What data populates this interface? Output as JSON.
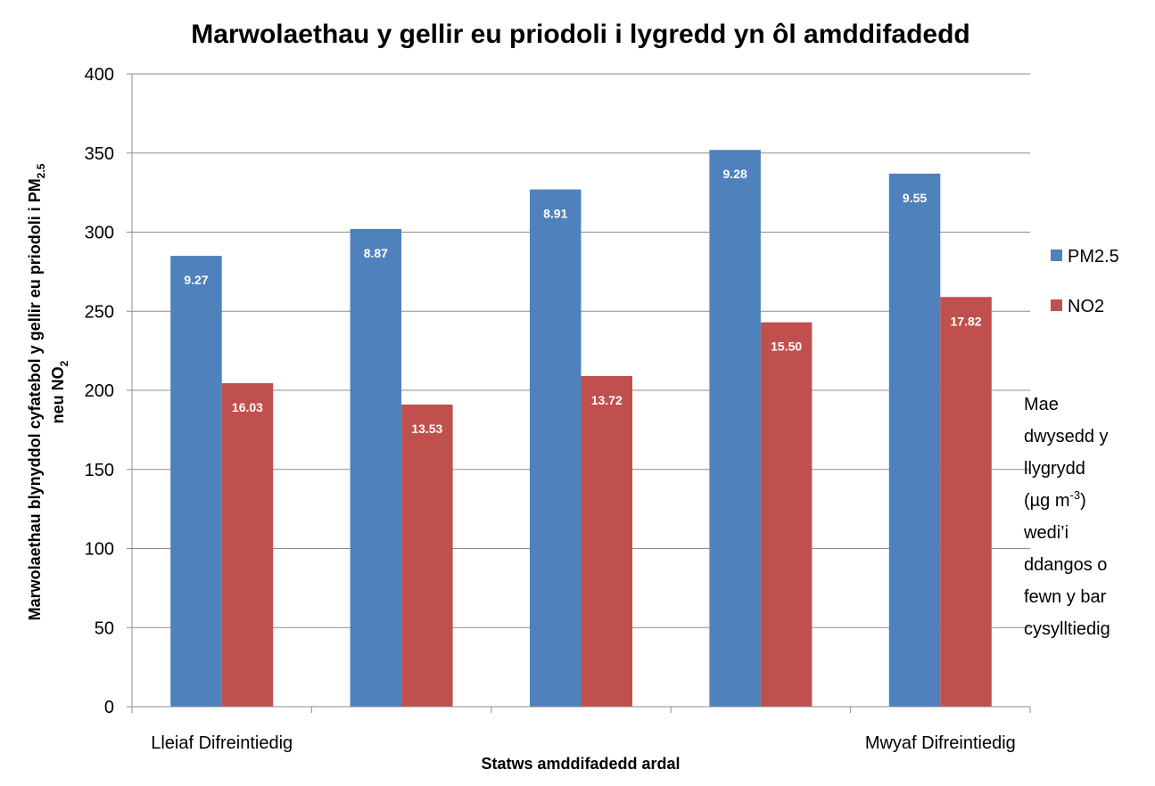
{
  "chart_data": {
    "type": "bar",
    "title": "Marwolaethau y gellir eu priodoli i lygredd yn ôl amddifadedd",
    "xlabel": "Statws amddifadedd ardal",
    "ylabel": {
      "line1": "Marwolaethau blynyddol cyfatebol y gellir eu priodoli i PM",
      "line1_sub": "2.5",
      "line2": "neu NO",
      "line2_sub": "2"
    },
    "categories": [
      "Lleiaf Difreintiedig",
      null,
      null,
      null,
      "Mwyaf Difreintiedig"
    ],
    "series": [
      {
        "name": "PM2.5",
        "color": "#4f81bd",
        "values": [
          285,
          302,
          327,
          352,
          337
        ],
        "bar_labels": [
          "9.27",
          "8.87",
          "8.91",
          "9.28",
          "9.55"
        ]
      },
      {
        "name": "NO2",
        "color": "#c0504d",
        "values": [
          204.5,
          191,
          209,
          243,
          259
        ],
        "bar_labels": [
          "16.03",
          "13.53",
          "13.72",
          "15.50",
          "17.82"
        ]
      }
    ],
    "ylim": [
      0,
      400
    ],
    "yticks": [
      0,
      50,
      100,
      150,
      200,
      250,
      300,
      350,
      400
    ],
    "grid": true,
    "legend": "right",
    "annotation": {
      "lines_before": [
        "Mae",
        "dwysedd y",
        "llygrydd"
      ],
      "unit": "(µg m",
      "unit_sup": "-3",
      "unit_end": ")",
      "lines_after": [
        "wedi’i",
        "ddangos o",
        "fewn y bar",
        "cysylltiedig"
      ]
    }
  }
}
